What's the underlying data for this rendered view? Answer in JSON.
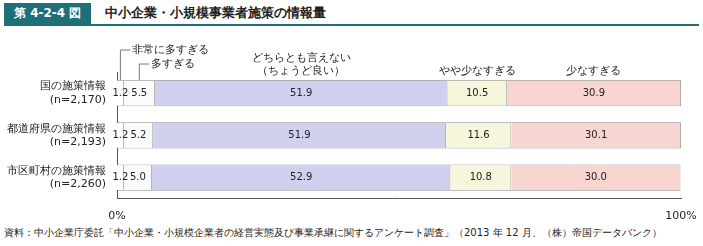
{
  "figure_number": "第 4-2-4 図",
  "source": "資料：中小企業庁委託「中小企業・小規模企業者の経営実態及び事業承継に関するアンケート調査」（2013 年 12 月、（株）帝国データバンク）",
  "chart_data": {
    "type": "bar",
    "title": "中小企業・小規模事業者施策の情報量",
    "orientation": "horizontal",
    "stacked": true,
    "data_labels": true,
    "grid": false,
    "categories": [
      "国の施策情報\n(n=2,170)",
      "都道府県の施策情報\n(n=2,193)",
      "市区町村の施策情報\n(n=2,260)"
    ],
    "series": [
      {
        "name": "非常に多すぎる",
        "color": "#ffffff",
        "values": [
          1.2,
          1.2,
          1.2
        ]
      },
      {
        "name": "多すぎる",
        "color": "#fbfbfd",
        "values": [
          5.5,
          5.2,
          5.0
        ],
        "value_labels": [
          "5.5",
          "5.2",
          "5.0"
        ]
      },
      {
        "name": "どちらとも言えない\n（ちょうど良い）",
        "color": "#cfd1ee",
        "values": [
          51.9,
          51.9,
          52.9
        ]
      },
      {
        "name": "やや少なすぎる",
        "color": "#f7f5dc",
        "values": [
          10.5,
          11.6,
          10.8
        ]
      },
      {
        "name": "少なすぎる",
        "color": "#f7d6d2",
        "values": [
          30.9,
          30.1,
          30.0
        ],
        "value_labels": [
          "30.9",
          "30.1",
          "30.0"
        ]
      }
    ],
    "xlim": [
      0,
      100
    ],
    "xticks": [
      {
        "value": 0,
        "label": "0%"
      },
      {
        "value": 100,
        "label": "100%"
      }
    ]
  }
}
